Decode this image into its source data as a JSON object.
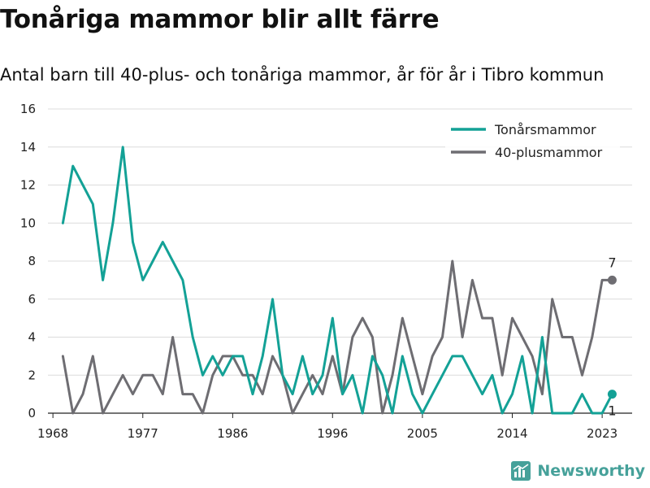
{
  "header": {
    "title": "Tonåriga mammor blir allt färre",
    "subtitle": "Antal barn till 40-plus- och tonåriga mammor, år för år i Tibro kommun"
  },
  "brand": {
    "name": "Newsworthy",
    "color": "#46a19a"
  },
  "chart_data": {
    "type": "line",
    "x": [
      1969,
      1970,
      1971,
      1972,
      1973,
      1974,
      1975,
      1976,
      1977,
      1978,
      1979,
      1980,
      1981,
      1982,
      1983,
      1984,
      1985,
      1986,
      1987,
      1988,
      1989,
      1990,
      1991,
      1992,
      1993,
      1994,
      1995,
      1996,
      1997,
      1998,
      1999,
      2000,
      2001,
      2002,
      2003,
      2004,
      2005,
      2006,
      2007,
      2008,
      2009,
      2010,
      2011,
      2012,
      2013,
      2014,
      2015,
      2016,
      2017,
      2018,
      2019,
      2020,
      2021,
      2022,
      2023,
      2024
    ],
    "series": [
      {
        "name": "Tonårsmammor",
        "color": "#13a196",
        "values": [
          10,
          13,
          12,
          11,
          7,
          10,
          14,
          9,
          7,
          8,
          9,
          8,
          7,
          4,
          2,
          3,
          2,
          3,
          3,
          1,
          3,
          6,
          2,
          1,
          3,
          1,
          2,
          5,
          1,
          2,
          0,
          3,
          2,
          0,
          3,
          1,
          0,
          1,
          2,
          3,
          3,
          2,
          1,
          2,
          0,
          1,
          3,
          0,
          4,
          0,
          0,
          0,
          1,
          0,
          0,
          1
        ],
        "end_label": "1"
      },
      {
        "name": "40-plusmammor",
        "color": "#6e6d72",
        "values": [
          3,
          0,
          1,
          3,
          0,
          1,
          2,
          1,
          2,
          2,
          1,
          4,
          1,
          1,
          0,
          2,
          3,
          3,
          2,
          2,
          1,
          3,
          2,
          0,
          1,
          2,
          1,
          3,
          1,
          4,
          5,
          4,
          0,
          2,
          5,
          3,
          1,
          3,
          4,
          8,
          4,
          7,
          5,
          5,
          2,
          5,
          4,
          3,
          1,
          6,
          4,
          4,
          2,
          4,
          7,
          7
        ],
        "end_label": "7"
      }
    ],
    "xticks": [
      1968,
      1977,
      1986,
      1996,
      2005,
      2014,
      2023
    ],
    "xtick_labels": [
      "1968",
      "1977",
      "1986",
      "1996",
      "2005",
      "2014",
      "2023"
    ],
    "yticks": [
      0,
      2,
      4,
      6,
      8,
      10,
      12,
      14,
      16
    ],
    "ytick_labels": [
      "0",
      "2",
      "4",
      "6",
      "8",
      "10",
      "12",
      "14",
      "16"
    ],
    "xlim": [
      1967.5,
      2026
    ],
    "ylim": [
      0,
      16
    ],
    "grid": true,
    "legend_position": "top-right"
  }
}
